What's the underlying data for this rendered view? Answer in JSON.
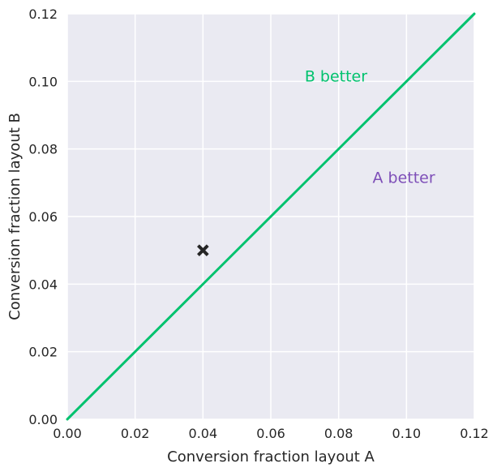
{
  "chart_data": {
    "type": "scatter",
    "title": "",
    "xlabel": "Conversion fraction layout A",
    "ylabel": "Conversion fraction layout B",
    "xlim": [
      0.0,
      0.12
    ],
    "ylim": [
      0.0,
      0.12
    ],
    "x_ticks": [
      "0.00",
      "0.02",
      "0.04",
      "0.06",
      "0.08",
      "0.10",
      "0.12"
    ],
    "y_ticks": [
      "0.00",
      "0.02",
      "0.04",
      "0.06",
      "0.08",
      "0.10",
      "0.12"
    ],
    "grid": true,
    "background_color": "#eaeaf2",
    "grid_color": "#ffffff",
    "points": [
      {
        "x": 0.04,
        "y": 0.05,
        "marker": "x-filled",
        "color": "#262626"
      }
    ],
    "reference_line": {
      "x": [
        0.0,
        0.12
      ],
      "y": [
        0.0,
        0.12
      ],
      "color": "#00c26e"
    },
    "annotations": [
      {
        "text": "B better",
        "x": 0.07,
        "y": 0.1,
        "color": "#00c26e"
      },
      {
        "text": "A better",
        "x": 0.09,
        "y": 0.07,
        "color": "#7e4fb8"
      }
    ]
  }
}
